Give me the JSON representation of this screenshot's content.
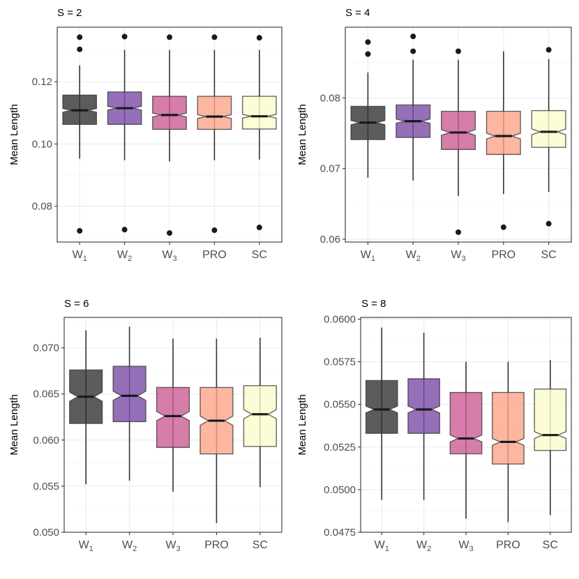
{
  "chart_data": [
    {
      "type": "boxplot",
      "title": "S = 2",
      "ylabel": "Mean Length",
      "xlabel": "",
      "grid": true,
      "ylim": [
        0.0685,
        0.1375
      ],
      "yticks": [
        0.08,
        0.1,
        0.12
      ],
      "ytick_labels": [
        "0.08",
        "0.10",
        "0.12"
      ],
      "categories": [
        {
          "base": "W",
          "sub": "1"
        },
        {
          "base": "W",
          "sub": "2"
        },
        {
          "base": "W",
          "sub": "3"
        },
        {
          "base": "PRO",
          "sub": ""
        },
        {
          "base": "SC",
          "sub": ""
        }
      ],
      "boxes": [
        {
          "q1": 0.1063,
          "median": 0.1108,
          "q3": 0.1157,
          "notch": [
            0.1102,
            0.1114
          ],
          "whisker_low": 0.0953,
          "whisker_high": 0.1252,
          "outliers": [
            0.1343,
            0.1304,
            0.0721
          ]
        },
        {
          "q1": 0.1063,
          "median": 0.1115,
          "q3": 0.1167,
          "notch": [
            0.1109,
            0.1121
          ],
          "whisker_low": 0.0948,
          "whisker_high": 0.1302,
          "outliers": [
            0.1345,
            0.0725
          ]
        },
        {
          "q1": 0.1047,
          "median": 0.1093,
          "q3": 0.1153,
          "notch": [
            0.1087,
            0.1099
          ],
          "whisker_low": 0.0944,
          "whisker_high": 0.1302,
          "outliers": [
            0.1343,
            0.0714
          ]
        },
        {
          "q1": 0.1047,
          "median": 0.1088,
          "q3": 0.1153,
          "notch": [
            0.1082,
            0.1094
          ],
          "whisker_low": 0.0948,
          "whisker_high": 0.1302,
          "outliers": [
            0.1343,
            0.0723
          ]
        },
        {
          "q1": 0.1048,
          "median": 0.1089,
          "q3": 0.1153,
          "notch": [
            0.1083,
            0.1095
          ],
          "whisker_low": 0.095,
          "whisker_high": 0.1302,
          "outliers": [
            0.1341,
            0.0732
          ]
        }
      ]
    },
    {
      "type": "boxplot",
      "title": "S = 4",
      "ylabel": "Mean Length",
      "xlabel": "",
      "grid": true,
      "ylim": [
        0.0596,
        0.09
      ],
      "yticks": [
        0.06,
        0.07,
        0.08
      ],
      "ytick_labels": [
        "0.06",
        "0.07",
        "0.08"
      ],
      "categories": [
        {
          "base": "W",
          "sub": "1"
        },
        {
          "base": "W",
          "sub": "2"
        },
        {
          "base": "W",
          "sub": "3"
        },
        {
          "base": "PRO",
          "sub": ""
        },
        {
          "base": "SC",
          "sub": ""
        }
      ],
      "boxes": [
        {
          "q1": 0.0741,
          "median": 0.0765,
          "q3": 0.0788,
          "notch": [
            0.0762,
            0.0768
          ],
          "whisker_low": 0.0687,
          "whisker_high": 0.0836,
          "outliers": [
            0.0879,
            0.0862
          ]
        },
        {
          "q1": 0.0744,
          "median": 0.0767,
          "q3": 0.079,
          "notch": [
            0.0764,
            0.077
          ],
          "whisker_low": 0.0683,
          "whisker_high": 0.0854,
          "outliers": [
            0.0887,
            0.0866
          ]
        },
        {
          "q1": 0.0727,
          "median": 0.0751,
          "q3": 0.0781,
          "notch": [
            0.0747,
            0.0755
          ],
          "whisker_low": 0.0661,
          "whisker_high": 0.0854,
          "outliers": [
            0.0866,
            0.061
          ]
        },
        {
          "q1": 0.072,
          "median": 0.0746,
          "q3": 0.0781,
          "notch": [
            0.0742,
            0.075
          ],
          "whisker_low": 0.0664,
          "whisker_high": 0.0866,
          "outliers": [
            0.0617
          ]
        },
        {
          "q1": 0.073,
          "median": 0.0752,
          "q3": 0.0782,
          "notch": [
            0.0748,
            0.0756
          ],
          "whisker_low": 0.0667,
          "whisker_high": 0.0855,
          "outliers": [
            0.0868,
            0.0622
          ]
        }
      ]
    },
    {
      "type": "boxplot",
      "title": "S = 6",
      "ylabel": "Mean Length",
      "xlabel": "",
      "grid": true,
      "ylim": [
        0.05,
        0.0733
      ],
      "yticks": [
        0.05,
        0.055,
        0.06,
        0.065,
        0.07
      ],
      "ytick_labels": [
        "0.050",
        "0.055",
        "0.060",
        "0.065",
        "0.070"
      ],
      "categories": [
        {
          "base": "W",
          "sub": "1"
        },
        {
          "base": "W",
          "sub": "2"
        },
        {
          "base": "W",
          "sub": "3"
        },
        {
          "base": "PRO",
          "sub": ""
        },
        {
          "base": "SC",
          "sub": ""
        }
      ],
      "boxes": [
        {
          "q1": 0.0618,
          "median": 0.0647,
          "q3": 0.0676,
          "notch": [
            0.0642,
            0.0652
          ],
          "whisker_low": 0.0552,
          "whisker_high": 0.0719,
          "outliers": []
        },
        {
          "q1": 0.062,
          "median": 0.0648,
          "q3": 0.068,
          "notch": [
            0.0643,
            0.0653
          ],
          "whisker_low": 0.0556,
          "whisker_high": 0.0723,
          "outliers": []
        },
        {
          "q1": 0.0592,
          "median": 0.0626,
          "q3": 0.0657,
          "notch": [
            0.0621,
            0.0631
          ],
          "whisker_low": 0.0544,
          "whisker_high": 0.071,
          "outliers": []
        },
        {
          "q1": 0.0585,
          "median": 0.0621,
          "q3": 0.0657,
          "notch": [
            0.0616,
            0.0626
          ],
          "whisker_low": 0.051,
          "whisker_high": 0.071,
          "outliers": []
        },
        {
          "q1": 0.0593,
          "median": 0.0628,
          "q3": 0.0659,
          "notch": [
            0.0623,
            0.0633
          ],
          "whisker_low": 0.0549,
          "whisker_high": 0.0711,
          "outliers": []
        }
      ]
    },
    {
      "type": "boxplot",
      "title": "S = 8",
      "ylabel": "Mean Length",
      "xlabel": "",
      "grid": true,
      "ylim": [
        0.0475,
        0.0601
      ],
      "yticks": [
        0.0475,
        0.05,
        0.0525,
        0.055,
        0.0575,
        0.06
      ],
      "ytick_labels": [
        "0.0475",
        "0.0500",
        "0.0525",
        "0.0550",
        "0.0575",
        "0.0600"
      ],
      "categories": [
        {
          "base": "W",
          "sub": "1"
        },
        {
          "base": "W",
          "sub": "2"
        },
        {
          "base": "W",
          "sub": "3"
        },
        {
          "base": "PRO",
          "sub": ""
        },
        {
          "base": "SC",
          "sub": ""
        }
      ],
      "boxes": [
        {
          "q1": 0.0533,
          "median": 0.0547,
          "q3": 0.0564,
          "notch": [
            0.0545,
            0.0549
          ],
          "whisker_low": 0.0494,
          "whisker_high": 0.0595,
          "outliers": []
        },
        {
          "q1": 0.0533,
          "median": 0.0547,
          "q3": 0.0565,
          "notch": [
            0.0545,
            0.0549
          ],
          "whisker_low": 0.0494,
          "whisker_high": 0.0592,
          "outliers": []
        },
        {
          "q1": 0.0521,
          "median": 0.053,
          "q3": 0.0557,
          "notch": [
            0.0528,
            0.0532
          ],
          "whisker_low": 0.0483,
          "whisker_high": 0.0575,
          "outliers": []
        },
        {
          "q1": 0.0515,
          "median": 0.0528,
          "q3": 0.0557,
          "notch": [
            0.0526,
            0.053
          ],
          "whisker_low": 0.0481,
          "whisker_high": 0.0575,
          "outliers": []
        },
        {
          "q1": 0.0523,
          "median": 0.0532,
          "q3": 0.0559,
          "notch": [
            0.053,
            0.0534
          ],
          "whisker_low": 0.0485,
          "whisker_high": 0.0576,
          "outliers": []
        }
      ]
    }
  ],
  "palette": [
    "#333333",
    "#7b4ca8",
    "#cc5c95",
    "#fca488",
    "#fbfbcd"
  ],
  "box_opacity": 0.8,
  "outline_color": "#333333",
  "grid_major_color": "#ebebeb",
  "grid_minor_color": "#f4f4f4",
  "border_color": "#333333"
}
